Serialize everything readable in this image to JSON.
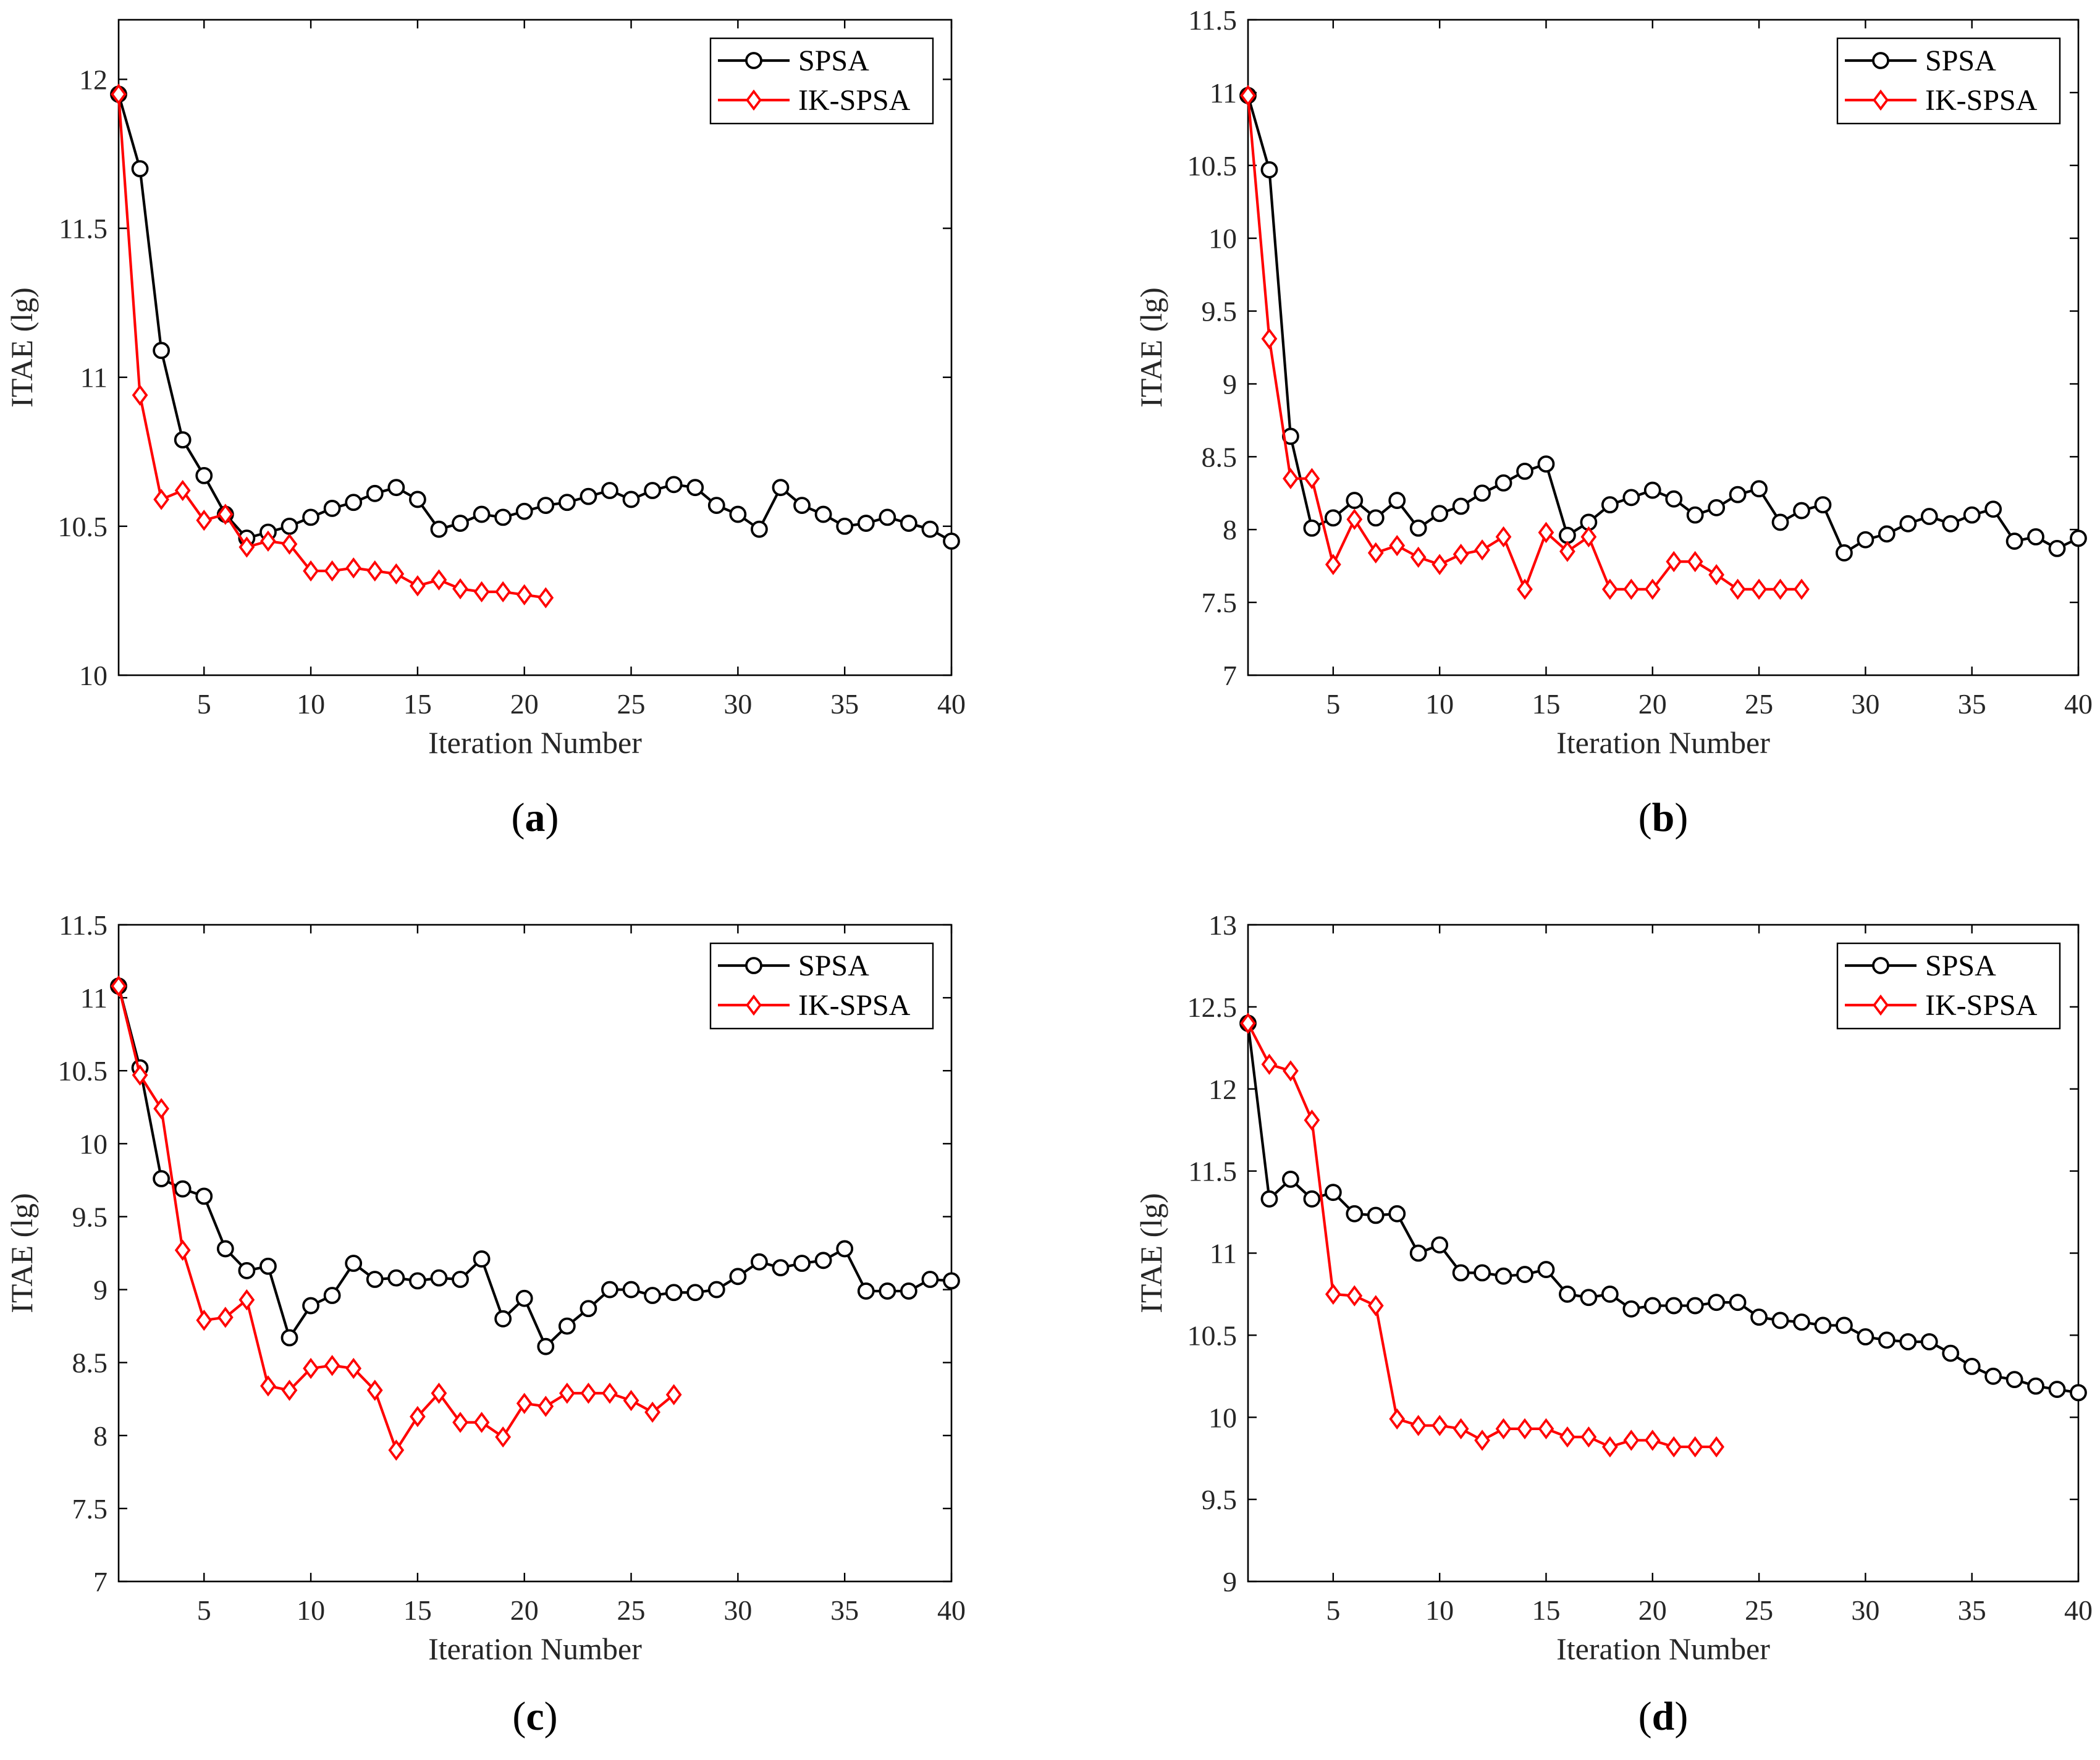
{
  "colors": {
    "spsa": "#000000",
    "ikspsa": "#ff0000"
  },
  "chart_data": [
    {
      "type": "line",
      "panel": "a",
      "caption": "a",
      "xlabel": "Iteration Number",
      "ylabel": "ITAE (lg)",
      "xlim": [
        1,
        40
      ],
      "ylim": [
        10,
        12.2
      ],
      "xticks": [
        5,
        10,
        15,
        20,
        25,
        30,
        35,
        40
      ],
      "yticks": [
        10,
        10.5,
        11,
        11.5,
        12
      ],
      "ytick_labels": [
        "10",
        "10.5",
        "11",
        "11.5",
        "12"
      ],
      "legend_position": "top-right",
      "series": [
        {
          "name": "SPSA",
          "marker": "circle",
          "values": [
            11.95,
            11.7,
            11.09,
            10.79,
            10.67,
            10.54,
            10.46,
            10.48,
            10.5,
            10.53,
            10.56,
            10.58,
            10.61,
            10.63,
            10.59,
            10.49,
            10.51,
            10.54,
            10.53,
            10.55,
            10.57,
            10.58,
            10.6,
            10.62,
            10.59,
            10.62,
            10.64,
            10.63,
            10.57,
            10.54,
            10.49,
            10.63,
            10.57,
            10.54,
            10.5,
            10.51,
            10.53,
            10.51,
            10.49,
            10.45
          ]
        },
        {
          "name": "IK-SPSA",
          "marker": "diamond",
          "values": [
            11.95,
            10.94,
            10.59,
            10.62,
            10.52,
            10.54,
            10.43,
            10.45,
            10.44,
            10.35,
            10.35,
            10.36,
            10.35,
            10.34,
            10.3,
            10.32,
            10.29,
            10.28,
            10.28,
            10.27,
            10.26
          ]
        }
      ]
    },
    {
      "type": "line",
      "panel": "b",
      "caption": "b",
      "xlabel": "Iteration Number",
      "ylabel": "ITAE (lg)",
      "xlim": [
        1,
        40
      ],
      "ylim": [
        7,
        11.5
      ],
      "xticks": [
        5,
        10,
        15,
        20,
        25,
        30,
        35,
        40
      ],
      "yticks": [
        7,
        7.5,
        8,
        8.5,
        9,
        9.5,
        10,
        10.5,
        11,
        11.5
      ],
      "ytick_labels": [
        "7",
        "7.5",
        "8",
        "8.5",
        "9",
        "9.5",
        "10",
        "10.5",
        "11",
        "11.5"
      ],
      "legend_position": "top-right",
      "series": [
        {
          "name": "SPSA",
          "marker": "circle",
          "values": [
            10.98,
            10.47,
            8.64,
            8.01,
            8.08,
            8.2,
            8.08,
            8.2,
            8.01,
            8.11,
            8.16,
            8.25,
            8.32,
            8.4,
            8.45,
            7.96,
            8.05,
            8.17,
            8.22,
            8.27,
            8.21,
            8.1,
            8.15,
            8.24,
            8.28,
            8.05,
            8.13,
            8.17,
            7.84,
            7.93,
            7.97,
            8.04,
            8.09,
            8.04,
            8.1,
            8.14,
            7.92,
            7.95,
            7.87,
            7.94
          ]
        },
        {
          "name": "IK-SPSA",
          "marker": "diamond",
          "values": [
            10.98,
            9.31,
            8.35,
            8.35,
            7.76,
            8.07,
            7.84,
            7.89,
            7.81,
            7.76,
            7.83,
            7.86,
            7.95,
            7.59,
            7.98,
            7.85,
            7.95,
            7.59,
            7.59,
            7.59,
            7.78,
            7.78,
            7.69,
            7.59,
            7.59,
            7.59,
            7.59
          ]
        }
      ]
    },
    {
      "type": "line",
      "panel": "c",
      "caption": "c",
      "xlabel": "Iteration Number",
      "ylabel": "ITAE (lg)",
      "xlim": [
        1,
        40
      ],
      "ylim": [
        7,
        11.5
      ],
      "xticks": [
        5,
        10,
        15,
        20,
        25,
        30,
        35,
        40
      ],
      "yticks": [
        7,
        7.5,
        8,
        8.5,
        9,
        9.5,
        10,
        10.5,
        11,
        11.5
      ],
      "ytick_labels": [
        "7",
        "7.5",
        "8",
        "8.5",
        "9",
        "9.5",
        "10",
        "10.5",
        "11",
        "11.5"
      ],
      "legend_position": "top-right",
      "series": [
        {
          "name": "SPSA",
          "marker": "circle",
          "values": [
            11.08,
            10.52,
            9.76,
            9.69,
            9.64,
            9.28,
            9.13,
            9.16,
            8.67,
            8.89,
            8.96,
            9.18,
            9.07,
            9.08,
            9.06,
            9.08,
            9.07,
            9.21,
            8.8,
            8.94,
            8.61,
            8.75,
            8.87,
            9.0,
            9.0,
            8.96,
            8.98,
            8.98,
            9.0,
            9.09,
            9.19,
            9.15,
            9.18,
            9.2,
            9.28,
            8.99,
            8.99,
            8.99,
            9.07,
            9.06
          ]
        },
        {
          "name": "IK-SPSA",
          "marker": "diamond",
          "values": [
            11.08,
            10.47,
            10.24,
            9.27,
            8.79,
            8.81,
            8.93,
            8.34,
            8.31,
            8.46,
            8.48,
            8.46,
            8.31,
            7.9,
            8.13,
            8.29,
            8.09,
            8.09,
            7.99,
            8.22,
            8.2,
            8.29,
            8.29,
            8.29,
            8.24,
            8.16,
            8.28
          ]
        }
      ]
    },
    {
      "type": "line",
      "panel": "d",
      "caption": "d",
      "xlabel": "Iteration Number",
      "ylabel": "ITAE (lg)",
      "xlim": [
        1,
        40
      ],
      "ylim": [
        9,
        13
      ],
      "xticks": [
        5,
        10,
        15,
        20,
        25,
        30,
        35,
        40
      ],
      "yticks": [
        9,
        9.5,
        10,
        10.5,
        11,
        11.5,
        12,
        12.5,
        13
      ],
      "ytick_labels": [
        "9",
        "9.5",
        "10",
        "10.5",
        "11",
        "11.5",
        "12",
        "12.5",
        "13"
      ],
      "legend_position": "top-right",
      "series": [
        {
          "name": "SPSA",
          "marker": "circle",
          "values": [
            12.4,
            11.33,
            11.45,
            11.33,
            11.37,
            11.24,
            11.23,
            11.24,
            11.0,
            11.05,
            10.88,
            10.88,
            10.86,
            10.87,
            10.9,
            10.75,
            10.73,
            10.75,
            10.66,
            10.68,
            10.68,
            10.68,
            10.7,
            10.7,
            10.61,
            10.59,
            10.58,
            10.56,
            10.56,
            10.49,
            10.47,
            10.46,
            10.46,
            10.39,
            10.31,
            10.25,
            10.23,
            10.19,
            10.17,
            10.15
          ]
        },
        {
          "name": "IK-SPSA",
          "marker": "diamond",
          "values": [
            12.4,
            12.15,
            12.11,
            11.81,
            10.75,
            10.74,
            10.68,
            9.99,
            9.95,
            9.95,
            9.93,
            9.86,
            9.93,
            9.93,
            9.93,
            9.88,
            9.88,
            9.82,
            9.86,
            9.86,
            9.82,
            9.82,
            9.82
          ]
        }
      ]
    }
  ]
}
